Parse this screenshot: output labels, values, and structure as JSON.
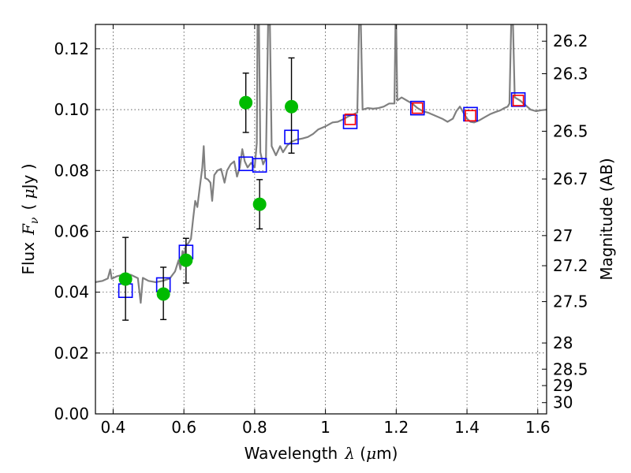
{
  "chart_data": {
    "type": "scatter",
    "xlabel_prefix": "Wavelength",
    "xlabel_symbol": "λ",
    "xlabel_unit_open": " (",
    "xlabel_unit_mu": "μ",
    "xlabel_unit_close": "m)",
    "ylabel_prefix": "Flux",
    "ylabel_symbol": "F",
    "ylabel_subscript": "ν",
    "ylabel_unit_open": "( ",
    "ylabel_unit_mu": "μ",
    "ylabel_unit_close": "Jy )",
    "y2label": "Magnitude (AB)",
    "xlim": [
      0.35,
      1.625
    ],
    "ylim": [
      0.0,
      0.128
    ],
    "grid": true,
    "x_ticks": [
      0.4,
      0.6,
      0.8,
      1.0,
      1.2,
      1.4,
      1.6
    ],
    "x_tick_labels": [
      "0.4",
      "0.6",
      "0.8",
      "1",
      "1.2",
      "1.4",
      "1.6"
    ],
    "y_ticks": [
      0.0,
      0.02,
      0.04,
      0.06,
      0.08,
      0.1,
      0.12
    ],
    "y_tick_labels": [
      "0.00",
      "0.02",
      "0.04",
      "0.06",
      "0.08",
      "0.10",
      "0.12"
    ],
    "y2_ticks": [
      {
        "label": "26.2",
        "flux": 0.1225
      },
      {
        "label": "26.3",
        "flux": 0.1118
      },
      {
        "label": "26.5",
        "flux": 0.0929
      },
      {
        "label": "26.7",
        "flux": 0.0772
      },
      {
        "label": "27",
        "flux": 0.0586
      },
      {
        "label": "27.2",
        "flux": 0.0487
      },
      {
        "label": "27.5",
        "flux": 0.0369
      },
      {
        "label": "28",
        "flux": 0.0233
      },
      {
        "label": "28.5",
        "flux": 0.0147
      },
      {
        "label": "29",
        "flux": 0.0093
      },
      {
        "label": "30",
        "flux": 0.0037
      }
    ],
    "series": [
      {
        "name": "observed photometry",
        "style": "green-circle-errorbar",
        "color": "#00bb00",
        "points": [
          {
            "x": 0.435,
            "y": 0.0443,
            "err_low": 0.0135,
            "err_high": 0.0137
          },
          {
            "x": 0.542,
            "y": 0.0394,
            "err_low": 0.0084,
            "err_high": 0.0088
          },
          {
            "x": 0.606,
            "y": 0.0505,
            "err_low": 0.0075,
            "err_high": 0.0072
          },
          {
            "x": 0.775,
            "y": 0.1023,
            "err_low": 0.0098,
            "err_high": 0.0097
          },
          {
            "x": 0.814,
            "y": 0.0689,
            "err_low": 0.0081,
            "err_high": 0.0081
          },
          {
            "x": 0.904,
            "y": 0.101,
            "err_low": 0.0153,
            "err_high": 0.016
          }
        ]
      },
      {
        "name": "model band fluxes",
        "style": "blue-open-square",
        "color": "#0000ff",
        "points": [
          {
            "x": 0.435,
            "y": 0.0405
          },
          {
            "x": 0.542,
            "y": 0.0425
          },
          {
            "x": 0.606,
            "y": 0.0532
          },
          {
            "x": 0.775,
            "y": 0.0822
          },
          {
            "x": 0.814,
            "y": 0.0817
          },
          {
            "x": 0.904,
            "y": 0.091
          },
          {
            "x": 1.07,
            "y": 0.096
          },
          {
            "x": 1.26,
            "y": 0.1005
          },
          {
            "x": 1.41,
            "y": 0.0985
          },
          {
            "x": 1.545,
            "y": 0.1033
          }
        ]
      },
      {
        "name": "near-infrared photometry",
        "style": "red-open-square",
        "color": "#ff0000",
        "points": [
          {
            "x": 1.07,
            "y": 0.0968
          },
          {
            "x": 1.26,
            "y": 0.1005
          },
          {
            "x": 1.41,
            "y": 0.098
          },
          {
            "x": 1.545,
            "y": 0.103
          }
        ]
      },
      {
        "name": "model spectrum",
        "style": "gray-line",
        "color": "#808080",
        "points": [
          [
            0.35,
            0.0433
          ],
          [
            0.37,
            0.0437
          ],
          [
            0.385,
            0.0445
          ],
          [
            0.392,
            0.0475
          ],
          [
            0.396,
            0.0444
          ],
          [
            0.41,
            0.0452
          ],
          [
            0.43,
            0.0458
          ],
          [
            0.45,
            0.0457
          ],
          [
            0.47,
            0.0446
          ],
          [
            0.478,
            0.0365
          ],
          [
            0.484,
            0.0447
          ],
          [
            0.5,
            0.0437
          ],
          [
            0.52,
            0.0433
          ],
          [
            0.54,
            0.0437
          ],
          [
            0.56,
            0.0445
          ],
          [
            0.575,
            0.0468
          ],
          [
            0.585,
            0.0505
          ],
          [
            0.59,
            0.0475
          ],
          [
            0.596,
            0.0535
          ],
          [
            0.6,
            0.0512
          ],
          [
            0.605,
            0.0552
          ],
          [
            0.612,
            0.056
          ],
          [
            0.62,
            0.0575
          ],
          [
            0.626,
            0.064
          ],
          [
            0.632,
            0.07
          ],
          [
            0.638,
            0.068
          ],
          [
            0.645,
            0.0745
          ],
          [
            0.652,
            0.081
          ],
          [
            0.656,
            0.088
          ],
          [
            0.66,
            0.0775
          ],
          [
            0.668,
            0.077
          ],
          [
            0.675,
            0.076
          ],
          [
            0.68,
            0.07
          ],
          [
            0.686,
            0.0785
          ],
          [
            0.695,
            0.08
          ],
          [
            0.705,
            0.0805
          ],
          [
            0.715,
            0.076
          ],
          [
            0.722,
            0.08
          ],
          [
            0.732,
            0.082
          ],
          [
            0.742,
            0.083
          ],
          [
            0.75,
            0.078
          ],
          [
            0.758,
            0.081
          ],
          [
            0.765,
            0.087
          ],
          [
            0.772,
            0.083
          ],
          [
            0.78,
            0.081
          ],
          [
            0.79,
            0.0825
          ],
          [
            0.8,
            0.081
          ],
          [
            0.806,
            0.089
          ],
          [
            0.808,
            0.128
          ],
          [
            0.812,
            0.128
          ],
          [
            0.816,
            0.086
          ],
          [
            0.824,
            0.082
          ],
          [
            0.832,
            0.084
          ],
          [
            0.838,
            0.128
          ],
          [
            0.843,
            0.128
          ],
          [
            0.848,
            0.088
          ],
          [
            0.86,
            0.085
          ],
          [
            0.872,
            0.088
          ],
          [
            0.88,
            0.086
          ],
          [
            0.892,
            0.0882
          ],
          [
            0.905,
            0.0895
          ],
          [
            0.92,
            0.0902
          ],
          [
            0.935,
            0.0905
          ],
          [
            0.95,
            0.091
          ],
          [
            0.965,
            0.092
          ],
          [
            0.98,
            0.0935
          ],
          [
            1.0,
            0.0945
          ],
          [
            1.02,
            0.0958
          ],
          [
            1.035,
            0.096
          ],
          [
            1.05,
            0.0968
          ],
          [
            1.065,
            0.0978
          ],
          [
            1.08,
            0.0985
          ],
          [
            1.09,
            0.099
          ],
          [
            1.095,
            0.128
          ],
          [
            1.1,
            0.128
          ],
          [
            1.105,
            0.1
          ],
          [
            1.12,
            0.1005
          ],
          [
            1.135,
            0.1003
          ],
          [
            1.15,
            0.1005
          ],
          [
            1.165,
            0.101
          ],
          [
            1.18,
            0.102
          ],
          [
            1.195,
            0.102
          ],
          [
            1.198,
            0.128
          ],
          [
            1.2,
            0.128
          ],
          [
            1.203,
            0.103
          ],
          [
            1.215,
            0.104
          ],
          [
            1.23,
            0.103
          ],
          [
            1.245,
            0.102
          ],
          [
            1.26,
            0.1005
          ],
          [
            1.275,
            0.0995
          ],
          [
            1.29,
            0.099
          ],
          [
            1.31,
            0.098
          ],
          [
            1.33,
            0.097
          ],
          [
            1.345,
            0.096
          ],
          [
            1.36,
            0.097
          ],
          [
            1.37,
            0.0995
          ],
          [
            1.38,
            0.101
          ],
          [
            1.39,
            0.099
          ],
          [
            1.4,
            0.097
          ],
          [
            1.41,
            0.096
          ],
          [
            1.42,
            0.0958
          ],
          [
            1.435,
            0.0965
          ],
          [
            1.45,
            0.0975
          ],
          [
            1.465,
            0.0985
          ],
          [
            1.48,
            0.0992
          ],
          [
            1.495,
            0.0998
          ],
          [
            1.505,
            0.1005
          ],
          [
            1.515,
            0.101
          ],
          [
            1.52,
            0.102
          ],
          [
            1.525,
            0.128
          ],
          [
            1.53,
            0.128
          ],
          [
            1.535,
            0.104
          ],
          [
            1.55,
            0.103
          ],
          [
            1.565,
            0.1015
          ],
          [
            1.58,
            0.1
          ],
          [
            1.595,
            0.0995
          ],
          [
            1.61,
            0.0998
          ],
          [
            1.625,
            0.1
          ]
        ]
      }
    ]
  }
}
